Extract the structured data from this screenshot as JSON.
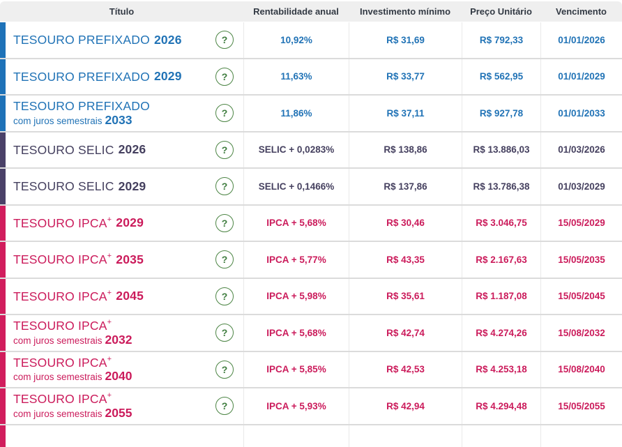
{
  "colors": {
    "prefixado": "#1e72b8",
    "selic": "#4a4168",
    "ipca": "#d11d5d",
    "header_background": "#efefef",
    "header_text": "#333a44",
    "help_icon_green": "#4c8544",
    "row_separator": "#dbdbdb",
    "column_line": "#e9e9e9"
  },
  "table": {
    "help_label": "?",
    "columns": [
      {
        "label": "Título"
      },
      {
        "label": "Rentabilidade anual"
      },
      {
        "label": "Investimento mínimo"
      },
      {
        "label": "Preço Unitário"
      },
      {
        "label": "Vencimento"
      }
    ],
    "rows": [
      {
        "category": "prefixado",
        "title": "TESOURO PREFIXADO",
        "sup": "",
        "subtitle": "",
        "year": "2026",
        "rate": "10,92%",
        "min_investment": "R$ 31,69",
        "unit_price": "R$ 792,33",
        "maturity": "01/01/2026"
      },
      {
        "category": "prefixado",
        "title": "TESOURO PREFIXADO",
        "sup": "",
        "subtitle": "",
        "year": "2029",
        "rate": "11,63%",
        "min_investment": "R$ 33,77",
        "unit_price": "R$ 562,95",
        "maturity": "01/01/2029"
      },
      {
        "category": "prefixado",
        "title": "TESOURO PREFIXADO",
        "sup": "",
        "subtitle": "com juros semestrais",
        "year": "2033",
        "rate": "11,86%",
        "min_investment": "R$ 37,11",
        "unit_price": "R$ 927,78",
        "maturity": "01/01/2033"
      },
      {
        "category": "selic",
        "title": "TESOURO SELIC",
        "sup": "",
        "subtitle": "",
        "year": "2026",
        "rate": "SELIC + 0,0283%",
        "min_investment": "R$ 138,86",
        "unit_price": "R$ 13.886,03",
        "maturity": "01/03/2026"
      },
      {
        "category": "selic",
        "title": "TESOURO SELIC",
        "sup": "",
        "subtitle": "",
        "year": "2029",
        "rate": "SELIC + 0,1466%",
        "min_investment": "R$ 137,86",
        "unit_price": "R$ 13.786,38",
        "maturity": "01/03/2029"
      },
      {
        "category": "ipca",
        "title": "TESOURO IPCA",
        "sup": "+",
        "subtitle": "",
        "year": "2029",
        "rate": "IPCA + 5,68%",
        "min_investment": "R$ 30,46",
        "unit_price": "R$ 3.046,75",
        "maturity": "15/05/2029"
      },
      {
        "category": "ipca",
        "title": "TESOURO IPCA",
        "sup": "+",
        "subtitle": "",
        "year": "2035",
        "rate": "IPCA + 5,77%",
        "min_investment": "R$ 43,35",
        "unit_price": "R$ 2.167,63",
        "maturity": "15/05/2035"
      },
      {
        "category": "ipca",
        "title": "TESOURO IPCA",
        "sup": "+",
        "subtitle": "",
        "year": "2045",
        "rate": "IPCA + 5,98%",
        "min_investment": "R$ 35,61",
        "unit_price": "R$ 1.187,08",
        "maturity": "15/05/2045"
      },
      {
        "category": "ipca",
        "title": "TESOURO IPCA",
        "sup": "+",
        "subtitle": "com juros semestrais",
        "year": "2032",
        "rate": "IPCA + 5,68%",
        "min_investment": "R$ 42,74",
        "unit_price": "R$ 4.274,26",
        "maturity": "15/08/2032"
      },
      {
        "category": "ipca",
        "title": "TESOURO IPCA",
        "sup": "+",
        "subtitle": "com juros semestrais",
        "year": "2040",
        "rate": "IPCA + 5,85%",
        "min_investment": "R$ 42,53",
        "unit_price": "R$ 4.253,18",
        "maturity": "15/08/2040"
      },
      {
        "category": "ipca",
        "title": "TESOURO IPCA",
        "sup": "+",
        "subtitle": "com juros semestrais",
        "year": "2055",
        "rate": "IPCA + 5,93%",
        "min_investment": "R$ 42,94",
        "unit_price": "R$ 4.294,48",
        "maturity": "15/05/2055"
      },
      {
        "category": "ipca",
        "title": "",
        "sup": "",
        "subtitle": "",
        "year": "",
        "rate": "",
        "min_investment": "",
        "unit_price": "",
        "maturity": "",
        "partial": true
      }
    ]
  }
}
